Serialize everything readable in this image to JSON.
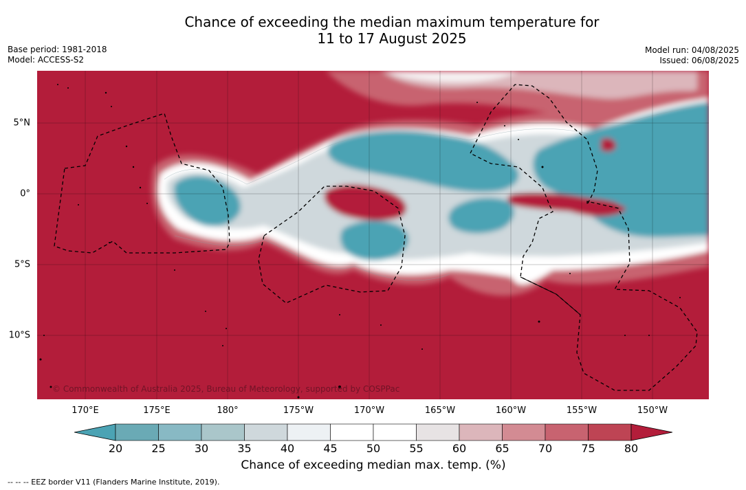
{
  "title_line1": "Chance of exceeding the median maximum temperature for",
  "title_line2": "11 to 17 August 2025",
  "base_period": "Base period: 1981-2018",
  "model": "Model: ACCESS-S2",
  "model_run": "Model run: 04/08/2025",
  "issued": "Issued: 06/08/2025",
  "copyright": "© Commonwealth of Australia 2025, Bureau of Meteorology, supported by COSPPac",
  "lat_labels": [
    "5°N",
    "0°",
    "5°S",
    "10°S"
  ],
  "lon_labels": [
    "170°E",
    "175°E",
    "180°",
    "175°W",
    "170°W",
    "165°W",
    "160°W",
    "155°W",
    "150°W"
  ],
  "colorbar": {
    "ticks": [
      "20",
      "25",
      "30",
      "35",
      "40",
      "45",
      "50",
      "55",
      "60",
      "65",
      "70",
      "75",
      "80"
    ],
    "colors": [
      "#6aaab5",
      "#88b9c4",
      "#aac6ca",
      "#cfd8dc",
      "#edf1f4",
      "#ffffff",
      "#ffffff",
      "#e7e3e4",
      "#dcb6bb",
      "#d38b93",
      "#c86370",
      "#be4454"
    ],
    "low_color": "#4ba3b4",
    "high_color": "#b31d3a",
    "label": "Chance of exceeding median max. temp. (%)"
  },
  "footer": "--  --  -- EEZ border V11 (Flanders Marine Institute, 2019)."
}
